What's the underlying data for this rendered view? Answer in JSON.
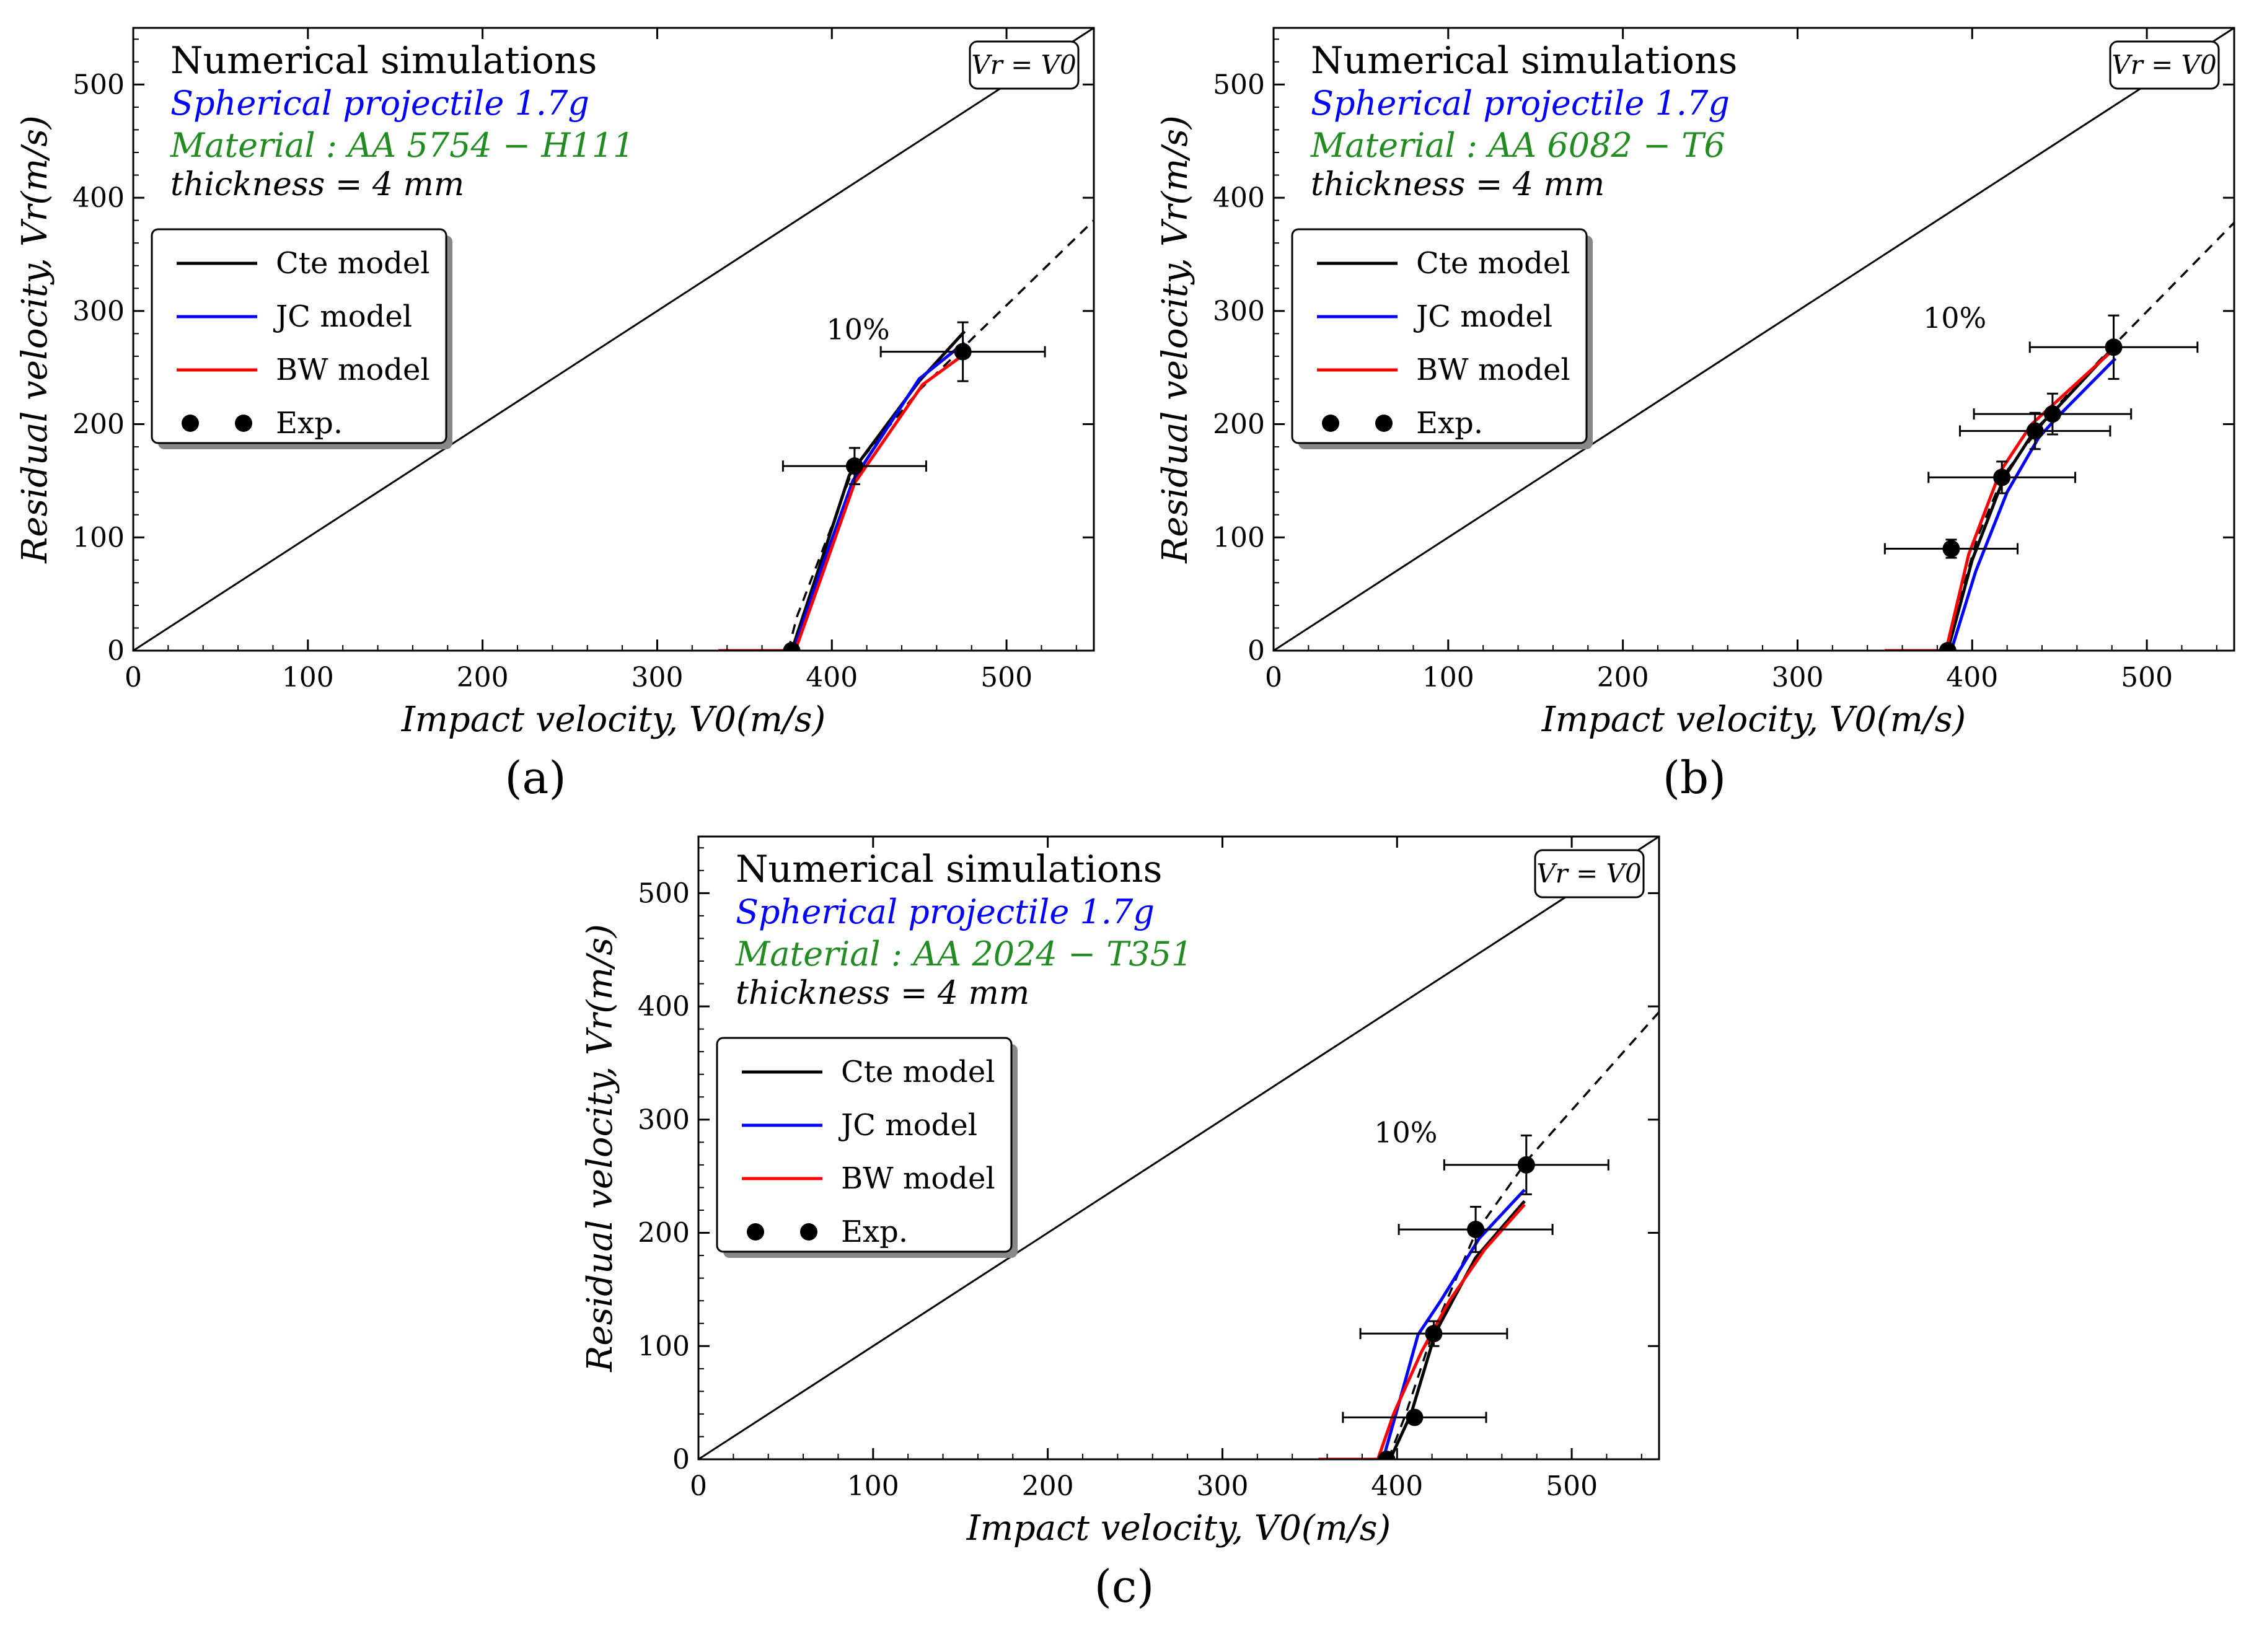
{
  "chart_data": [
    {
      "type": "line",
      "panel_label": "(a)",
      "title": "Numerical simulations",
      "subtitle": "Spherical projectile 1.7g",
      "material": "Material :  AA 5754 − H111",
      "thickness": "thickness = 4 mm",
      "identity_label": "Vr = V0",
      "xlabel": "Impact velocity,  V0(m/s)",
      "ylabel": "Residual velocity,  Vr(m/s)",
      "xlim": [
        0,
        550
      ],
      "ylim": [
        0,
        550
      ],
      "xticks": [
        0,
        100,
        200,
        300,
        400,
        500
      ],
      "yticks": [
        0,
        100,
        200,
        300,
        400,
        500
      ],
      "annotation": "10%",
      "annotation_at": [
        415,
        275
      ],
      "dashed_fit": [
        [
          375,
          0
        ],
        [
          380,
          30
        ],
        [
          400,
          110
        ],
        [
          412,
          160
        ],
        [
          450,
          230
        ],
        [
          550,
          380
        ]
      ],
      "series": [
        {
          "name": "Cte model",
          "color": "#000000",
          "points": [
            [
              335,
              0
            ],
            [
              377,
              0
            ],
            [
              392,
              70
            ],
            [
              410,
              155
            ],
            [
              450,
              238
            ],
            [
              476,
              282
            ]
          ]
        },
        {
          "name": "JC model",
          "color": "#0000ff",
          "points": [
            [
              335,
              0
            ],
            [
              378,
              0
            ],
            [
              393,
              68
            ],
            [
              412,
              150
            ],
            [
              450,
              240
            ],
            [
              476,
              272
            ]
          ]
        },
        {
          "name": "BW model",
          "color": "#ff0000",
          "points": [
            [
              335,
              0
            ],
            [
              379,
              0
            ],
            [
              394,
              65
            ],
            [
              413,
              148
            ],
            [
              452,
              235
            ],
            [
              476,
              262
            ]
          ]
        }
      ],
      "experiments": [
        {
          "x": 377,
          "y": 0,
          "xerr": 0,
          "yerr": 0
        },
        {
          "x": 413,
          "y": 163,
          "xerr": 41,
          "yerr": 16
        },
        {
          "x": 475,
          "y": 264,
          "xerr": 47,
          "yerr": 26
        }
      ],
      "legend": [
        "Cte model",
        "JC model",
        "BW model",
        "Exp."
      ]
    },
    {
      "type": "line",
      "panel_label": "(b)",
      "title": "Numerical simulations",
      "subtitle": "Spherical projectile 1.7g",
      "material": "Material :  AA 6082 − T6",
      "thickness": "thickness = 4 mm",
      "identity_label": "Vr = V0",
      "xlabel": "Impact velocity,  V0(m/s)",
      "ylabel": "Residual velocity,  Vr(m/s)",
      "xlim": [
        0,
        550
      ],
      "ylim": [
        0,
        550
      ],
      "xticks": [
        0,
        100,
        200,
        300,
        400,
        500
      ],
      "yticks": [
        0,
        100,
        200,
        300,
        400,
        500
      ],
      "annotation": "10%",
      "annotation_at": [
        390,
        285
      ],
      "dashed_fit": [
        [
          385,
          0
        ],
        [
          392,
          40
        ],
        [
          403,
          100
        ],
        [
          418,
          155
        ],
        [
          445,
          210
        ],
        [
          480,
          268
        ],
        [
          550,
          378
        ]
      ],
      "series": [
        {
          "name": "Cte model",
          "color": "#000000",
          "points": [
            [
              350,
              0
            ],
            [
              386,
              0
            ],
            [
              400,
              80
            ],
            [
              418,
              152
            ],
            [
              436,
              195
            ],
            [
              446,
              210
            ],
            [
              481,
              268
            ]
          ]
        },
        {
          "name": "JC model",
          "color": "#0000ff",
          "points": [
            [
              350,
              0
            ],
            [
              388,
              0
            ],
            [
              402,
              70
            ],
            [
              420,
              140
            ],
            [
              438,
              188
            ],
            [
              448,
              205
            ],
            [
              482,
              258
            ]
          ]
        },
        {
          "name": "BW model",
          "color": "#ff0000",
          "points": [
            [
              350,
              0
            ],
            [
              385,
              0
            ],
            [
              398,
              85
            ],
            [
              416,
              158
            ],
            [
              434,
              200
            ],
            [
              444,
              214
            ],
            [
              481,
              266
            ]
          ]
        }
      ],
      "experiments": [
        {
          "x": 386,
          "y": 0,
          "xerr": 0,
          "yerr": 0
        },
        {
          "x": 388,
          "y": 90,
          "xerr": 38,
          "yerr": 8
        },
        {
          "x": 417,
          "y": 153,
          "xerr": 42,
          "yerr": 14
        },
        {
          "x": 436,
          "y": 194,
          "xerr": 43,
          "yerr": 16
        },
        {
          "x": 446,
          "y": 209,
          "xerr": 45,
          "yerr": 18
        },
        {
          "x": 481,
          "y": 268,
          "xerr": 48,
          "yerr": 28
        }
      ],
      "legend": [
        "Cte model",
        "JC model",
        "BW model",
        "Exp."
      ]
    },
    {
      "type": "line",
      "panel_label": "(c)",
      "title": "Numerical simulations",
      "subtitle": "Spherical projectile 1.7g",
      "material": "Material :  AA 2024 − T351",
      "thickness": "thickness = 4 mm",
      "identity_label": "Vr = V0",
      "xlabel": "Impact velocity,  V0(m/s)",
      "ylabel": "Residual velocity,  Vr(m/s)",
      "xlim": [
        0,
        550
      ],
      "ylim": [
        0,
        550
      ],
      "xticks": [
        0,
        100,
        200,
        300,
        400,
        500
      ],
      "yticks": [
        0,
        100,
        200,
        300,
        400,
        500
      ],
      "annotation": "10%",
      "annotation_at": [
        405,
        280
      ],
      "dashed_fit": [
        [
          395,
          0
        ],
        [
          405,
          40
        ],
        [
          420,
          110
        ],
        [
          445,
          200
        ],
        [
          475,
          265
        ],
        [
          550,
          395
        ]
      ],
      "series": [
        {
          "name": "Cte model",
          "color": "#000000",
          "points": [
            [
              355,
              0
            ],
            [
              396,
              0
            ],
            [
              408,
              40
            ],
            [
              422,
              112
            ],
            [
              445,
              178
            ],
            [
              473,
              228
            ]
          ]
        },
        {
          "name": "JC model",
          "color": "#0000ff",
          "points": [
            [
              355,
              0
            ],
            [
              392,
              0
            ],
            [
              403,
              60
            ],
            [
              412,
              110
            ],
            [
              425,
              140
            ],
            [
              447,
              195
            ],
            [
              473,
              238
            ]
          ]
        },
        {
          "name": "BW model",
          "color": "#ff0000",
          "points": [
            [
              355,
              0
            ],
            [
              389,
              0
            ],
            [
              398,
              40
            ],
            [
              414,
              95
            ],
            [
              430,
              140
            ],
            [
              450,
              185
            ],
            [
              473,
              225
            ]
          ]
        }
      ],
      "experiments": [
        {
          "x": 394,
          "y": 0,
          "xerr": 0,
          "yerr": 0
        },
        {
          "x": 410,
          "y": 37,
          "xerr": 41,
          "yerr": 4
        },
        {
          "x": 421,
          "y": 111,
          "xerr": 42,
          "yerr": 11
        },
        {
          "x": 445,
          "y": 203,
          "xerr": 44,
          "yerr": 20
        },
        {
          "x": 474,
          "y": 260,
          "xerr": 47,
          "yerr": 26
        }
      ],
      "legend": [
        "Cte model",
        "JC model",
        "BW model",
        "Exp."
      ]
    }
  ],
  "colors": {
    "axis": "#000000",
    "material_text": "#228b22",
    "projectile_text": "#0000ff"
  }
}
